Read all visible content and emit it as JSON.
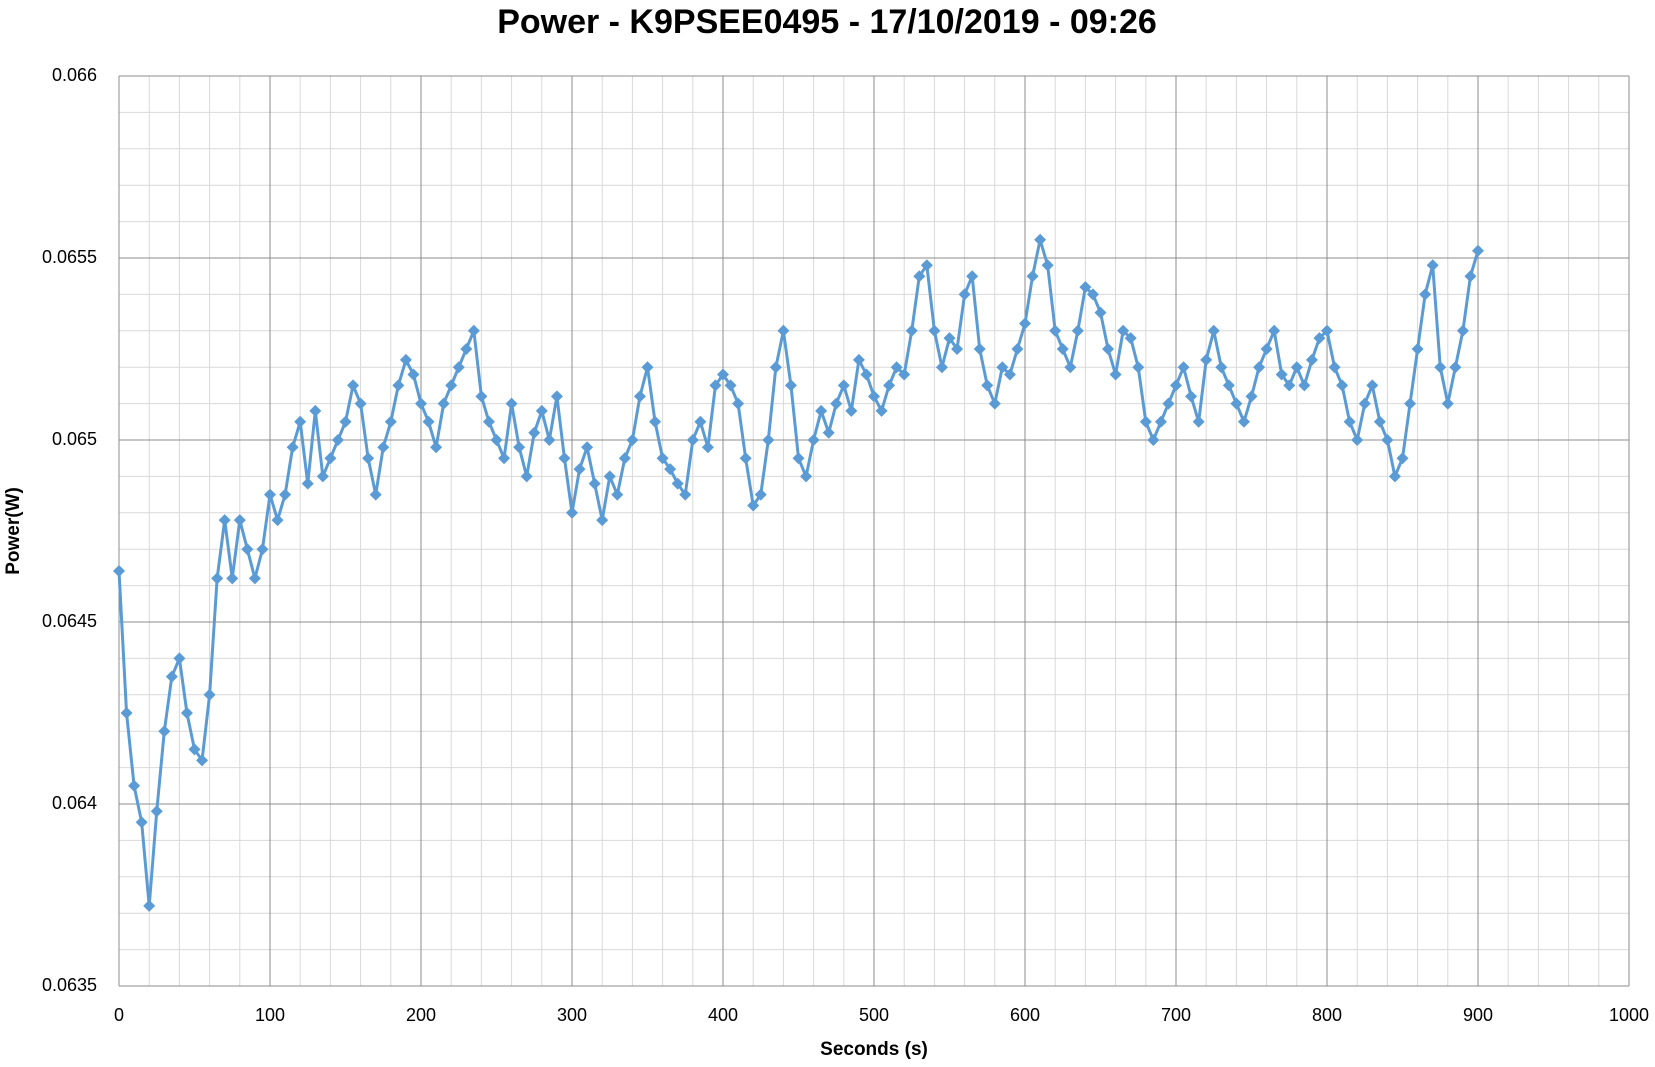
{
  "chart_data": {
    "type": "line",
    "title": "Power - K9PSEE0495 - 17/10/2019 - 09:26",
    "x_label": "Seconds (s)",
    "y_label": "Power(W)",
    "xlim": [
      0,
      1000
    ],
    "xticks": [
      0,
      100,
      200,
      300,
      400,
      500,
      600,
      700,
      800,
      900,
      1000
    ],
    "ylim": [
      0.0635,
      0.066
    ],
    "yticks": [
      0.0635,
      0.064,
      0.0645,
      0.065,
      0.0655,
      0.066
    ],
    "grid": true,
    "minor_divisions": 5,
    "marker": "diamond",
    "series": [
      {
        "name": "Power",
        "color": "#5b9bd5",
        "x": [
          0,
          5,
          10,
          15,
          20,
          25,
          30,
          35,
          40,
          45,
          50,
          55,
          60,
          65,
          70,
          75,
          80,
          85,
          90,
          95,
          100,
          105,
          110,
          115,
          120,
          125,
          130,
          135,
          140,
          145,
          150,
          155,
          160,
          165,
          170,
          175,
          180,
          185,
          190,
          195,
          200,
          205,
          210,
          215,
          220,
          225,
          230,
          235,
          240,
          245,
          250,
          255,
          260,
          265,
          270,
          275,
          280,
          285,
          290,
          295,
          300,
          305,
          310,
          315,
          320,
          325,
          330,
          335,
          340,
          345,
          350,
          355,
          360,
          365,
          370,
          375,
          380,
          385,
          390,
          395,
          400,
          405,
          410,
          415,
          420,
          425,
          430,
          435,
          440,
          445,
          450,
          455,
          460,
          465,
          470,
          475,
          480,
          485,
          490,
          495,
          500,
          505,
          510,
          515,
          520,
          525,
          530,
          535,
          540,
          545,
          550,
          555,
          560,
          565,
          570,
          575,
          580,
          585,
          590,
          595,
          600,
          605,
          610,
          615,
          620,
          625,
          630,
          635,
          640,
          645,
          650,
          655,
          660,
          665,
          670,
          675,
          680,
          685,
          690,
          695,
          700,
          705,
          710,
          715,
          720,
          725,
          730,
          735,
          740,
          745,
          750,
          755,
          760,
          765,
          770,
          775,
          780,
          785,
          790,
          795,
          800,
          805,
          810,
          815,
          820,
          825,
          830,
          835,
          840,
          845,
          850,
          855,
          860,
          865,
          870,
          875,
          880,
          885,
          890,
          895,
          900
        ],
        "values": [
          0.06464,
          0.06425,
          0.06405,
          0.06395,
          0.06372,
          0.06398,
          0.0642,
          0.06435,
          0.0644,
          0.06425,
          0.06415,
          0.06412,
          0.0643,
          0.06462,
          0.06478,
          0.06462,
          0.06478,
          0.0647,
          0.06462,
          0.0647,
          0.06485,
          0.06478,
          0.06485,
          0.06498,
          0.06505,
          0.06488,
          0.06508,
          0.0649,
          0.06495,
          0.065,
          0.06505,
          0.06515,
          0.0651,
          0.06495,
          0.06485,
          0.06498,
          0.06505,
          0.06515,
          0.06522,
          0.06518,
          0.0651,
          0.06505,
          0.06498,
          0.0651,
          0.06515,
          0.0652,
          0.06525,
          0.0653,
          0.06512,
          0.06505,
          0.065,
          0.06495,
          0.0651,
          0.06498,
          0.0649,
          0.06502,
          0.06508,
          0.065,
          0.06512,
          0.06495,
          0.0648,
          0.06492,
          0.06498,
          0.06488,
          0.06478,
          0.0649,
          0.06485,
          0.06495,
          0.065,
          0.06512,
          0.0652,
          0.06505,
          0.06495,
          0.06492,
          0.06488,
          0.06485,
          0.065,
          0.06505,
          0.06498,
          0.06515,
          0.06518,
          0.06515,
          0.0651,
          0.06495,
          0.06482,
          0.06485,
          0.065,
          0.0652,
          0.0653,
          0.06515,
          0.06495,
          0.0649,
          0.065,
          0.06508,
          0.06502,
          0.0651,
          0.06515,
          0.06508,
          0.06522,
          0.06518,
          0.06512,
          0.06508,
          0.06515,
          0.0652,
          0.06518,
          0.0653,
          0.06545,
          0.06548,
          0.0653,
          0.0652,
          0.06528,
          0.06525,
          0.0654,
          0.06545,
          0.06525,
          0.06515,
          0.0651,
          0.0652,
          0.06518,
          0.06525,
          0.06532,
          0.06545,
          0.06555,
          0.06548,
          0.0653,
          0.06525,
          0.0652,
          0.0653,
          0.06542,
          0.0654,
          0.06535,
          0.06525,
          0.06518,
          0.0653,
          0.06528,
          0.0652,
          0.06505,
          0.065,
          0.06505,
          0.0651,
          0.06515,
          0.0652,
          0.06512,
          0.06505,
          0.06522,
          0.0653,
          0.0652,
          0.06515,
          0.0651,
          0.06505,
          0.06512,
          0.0652,
          0.06525,
          0.0653,
          0.06518,
          0.06515,
          0.0652,
          0.06515,
          0.06522,
          0.06528,
          0.0653,
          0.0652,
          0.06515,
          0.06505,
          0.065,
          0.0651,
          0.06515,
          0.06505,
          0.065,
          0.0649,
          0.06495,
          0.0651,
          0.06525,
          0.0654,
          0.06548,
          0.0652,
          0.0651,
          0.0652,
          0.0653,
          0.06545,
          0.06552
        ]
      }
    ]
  }
}
